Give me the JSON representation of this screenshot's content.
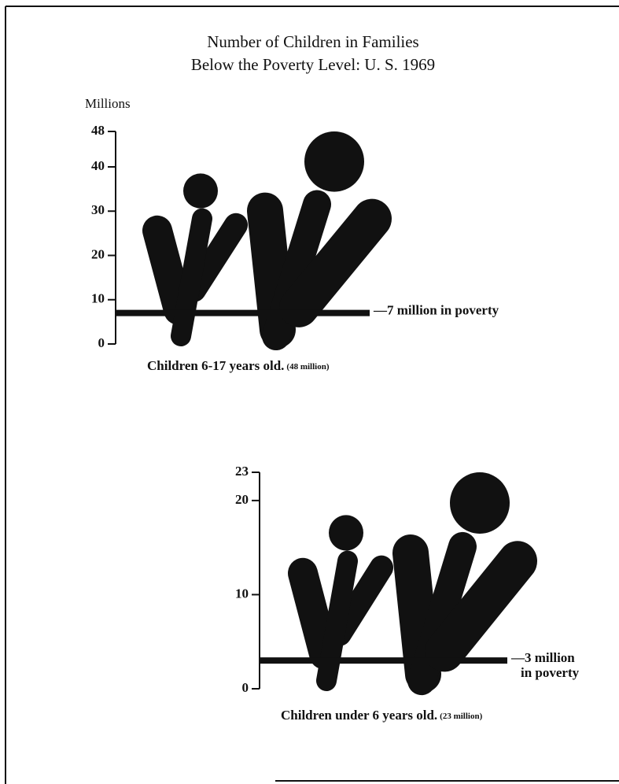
{
  "title": [
    "Number of Children in Families",
    "Below the Poverty Level: U. S. 1969"
  ],
  "chart_data": [
    {
      "type": "pictogram",
      "y_label": "Millions",
      "ylim": [
        0,
        48
      ],
      "yticks": [
        0,
        10,
        20,
        30,
        40,
        48
      ],
      "total": 48,
      "poverty": 7,
      "color": "#111111",
      "annotation": [
        "—7 million in poverty"
      ],
      "caption": "Children 6-17 years old.",
      "caption_note": "(48 million)"
    },
    {
      "type": "pictogram",
      "ylim": [
        0,
        23
      ],
      "yticks": [
        0,
        10,
        20,
        23
      ],
      "total": 23,
      "poverty": 3,
      "color": "#111111",
      "annotation": [
        "—3 million",
        "in poverty"
      ],
      "caption": "Children under 6 years old.",
      "caption_note": "(23 million)"
    }
  ]
}
